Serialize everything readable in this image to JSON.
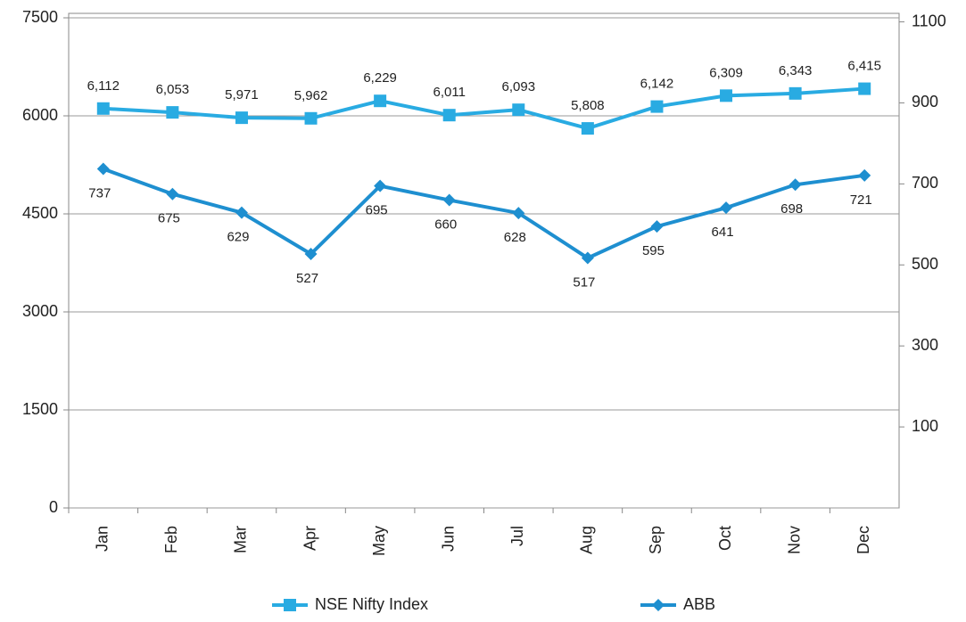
{
  "chart_data": {
    "type": "line",
    "categories": [
      "Jan",
      "Feb",
      "Mar",
      "Apr",
      "May",
      "Jun",
      "Jul",
      "Aug",
      "Sep",
      "Oct",
      "Nov",
      "Dec"
    ],
    "series": [
      {
        "name": "NSE Nifty Index",
        "color": "#29abe2",
        "marker": "square",
        "values": [
          6112,
          6053,
          5971,
          5962,
          6229,
          6011,
          6093,
          5808,
          6142,
          6309,
          6343,
          6415
        ],
        "value_labels": [
          "6,112",
          "6,053",
          "5,971",
          "5,962",
          "6,229",
          "6,011",
          "6,093",
          "5,808",
          "6,142",
          "6,309",
          "6,343",
          "6,415"
        ]
      },
      {
        "name": "ABB",
        "color": "#1e8fd0",
        "marker": "diamond",
        "axis": "y2",
        "values": [
          737,
          675,
          629,
          527,
          695,
          660,
          628,
          517,
          595,
          641,
          698,
          721
        ]
      }
    ],
    "ylim": [
      0,
      7500
    ],
    "yticks": [
      0,
      1500,
      3000,
      4500,
      6000,
      7500
    ],
    "y2lim": [
      -100,
      1110
    ],
    "y2ticks": [
      100,
      300,
      500,
      700,
      900,
      1100
    ],
    "grid": true,
    "legend": "bottom"
  }
}
